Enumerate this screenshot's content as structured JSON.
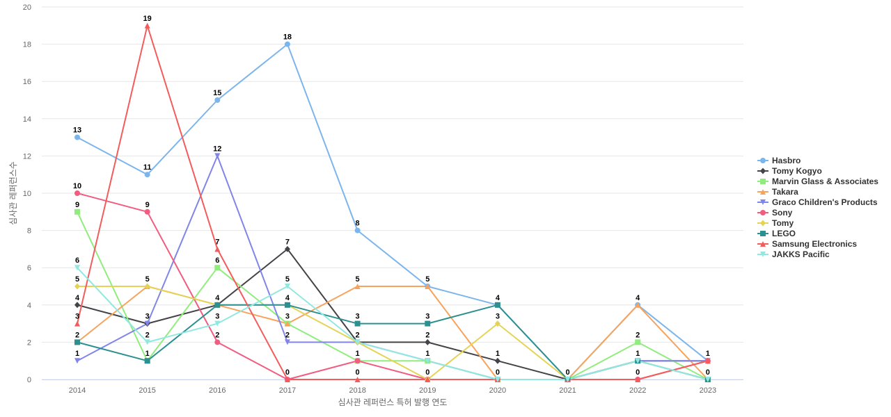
{
  "chart_data": {
    "type": "line",
    "title": "",
    "xlabel": "심사관 레퍼런스 특허 발행 연도",
    "ylabel": "심사관 레퍼런스수",
    "ylim": [
      0,
      20
    ],
    "yticks": [
      0,
      2,
      4,
      6,
      8,
      10,
      12,
      14,
      16,
      18,
      20
    ],
    "grid": true,
    "legend_position": "right",
    "categories": [
      "2014",
      "2015",
      "2016",
      "2017",
      "2018",
      "2019",
      "2020",
      "2021",
      "2022",
      "2023"
    ],
    "series": [
      {
        "name": "Hasbro",
        "color": "#7cb5ec",
        "marker": "circle",
        "values": [
          13,
          11,
          15,
          18,
          8,
          5,
          4,
          0,
          4,
          1
        ]
      },
      {
        "name": "Tomy Kogyo",
        "color": "#434348",
        "marker": "diamond",
        "values": [
          4,
          3,
          4,
          7,
          2,
          2,
          1,
          0,
          1,
          1
        ]
      },
      {
        "name": "Marvin Glass & Associates",
        "color": "#90ed7d",
        "marker": "square",
        "values": [
          9,
          1,
          6,
          3,
          1,
          1,
          0,
          0,
          2,
          0
        ]
      },
      {
        "name": "Takara",
        "color": "#f7a35c",
        "marker": "triangle",
        "values": [
          2,
          5,
          4,
          3,
          5,
          5,
          0,
          0,
          4,
          0
        ]
      },
      {
        "name": "Graco Children's Products",
        "color": "#8085e9",
        "marker": "triangle-down",
        "values": [
          1,
          3,
          12,
          2,
          2,
          1,
          0,
          0,
          1,
          1
        ]
      },
      {
        "name": "Sony",
        "color": "#f15c80",
        "marker": "circle",
        "values": [
          10,
          9,
          2,
          0,
          1,
          0,
          0,
          0,
          0,
          1
        ]
      },
      {
        "name": "Tomy",
        "color": "#e4d354",
        "marker": "diamond",
        "values": [
          5,
          5,
          4,
          4,
          2,
          0,
          3,
          0,
          1,
          0
        ]
      },
      {
        "name": "LEGO",
        "color": "#2b908f",
        "marker": "square",
        "values": [
          2,
          1,
          4,
          4,
          3,
          3,
          4,
          0,
          1,
          0
        ]
      },
      {
        "name": "Samsung Electronics",
        "color": "#f45b5b",
        "marker": "triangle",
        "values": [
          3,
          19,
          7,
          0,
          0,
          0,
          0,
          0,
          0,
          1
        ]
      },
      {
        "name": "JAKKS Pacific",
        "color": "#91e8e1",
        "marker": "triangle-down",
        "values": [
          6,
          2,
          3,
          5,
          2,
          1,
          0,
          0,
          1,
          0
        ]
      }
    ],
    "data_labels": [
      {
        "category": "2014",
        "labels": [
          13,
          10,
          9,
          6,
          5,
          4,
          3,
          2,
          1
        ]
      },
      {
        "category": "2015",
        "labels": [
          19,
          11,
          9,
          5,
          3,
          2,
          1
        ]
      },
      {
        "category": "2016",
        "labels": [
          15,
          12,
          7,
          6,
          4,
          3,
          2
        ]
      },
      {
        "category": "2017",
        "labels": [
          18,
          7,
          5,
          4,
          3,
          2,
          0
        ]
      },
      {
        "category": "2018",
        "labels": [
          8,
          5,
          3,
          2,
          1,
          0
        ]
      },
      {
        "category": "2019",
        "labels": [
          5,
          3,
          2,
          1,
          0
        ]
      },
      {
        "category": "2020",
        "labels": [
          4,
          3,
          1,
          0
        ]
      },
      {
        "category": "2021",
        "labels": [
          0
        ]
      },
      {
        "category": "2022",
        "labels": [
          4,
          2,
          1,
          0
        ]
      },
      {
        "category": "2023",
        "labels": [
          1,
          0
        ]
      }
    ]
  }
}
